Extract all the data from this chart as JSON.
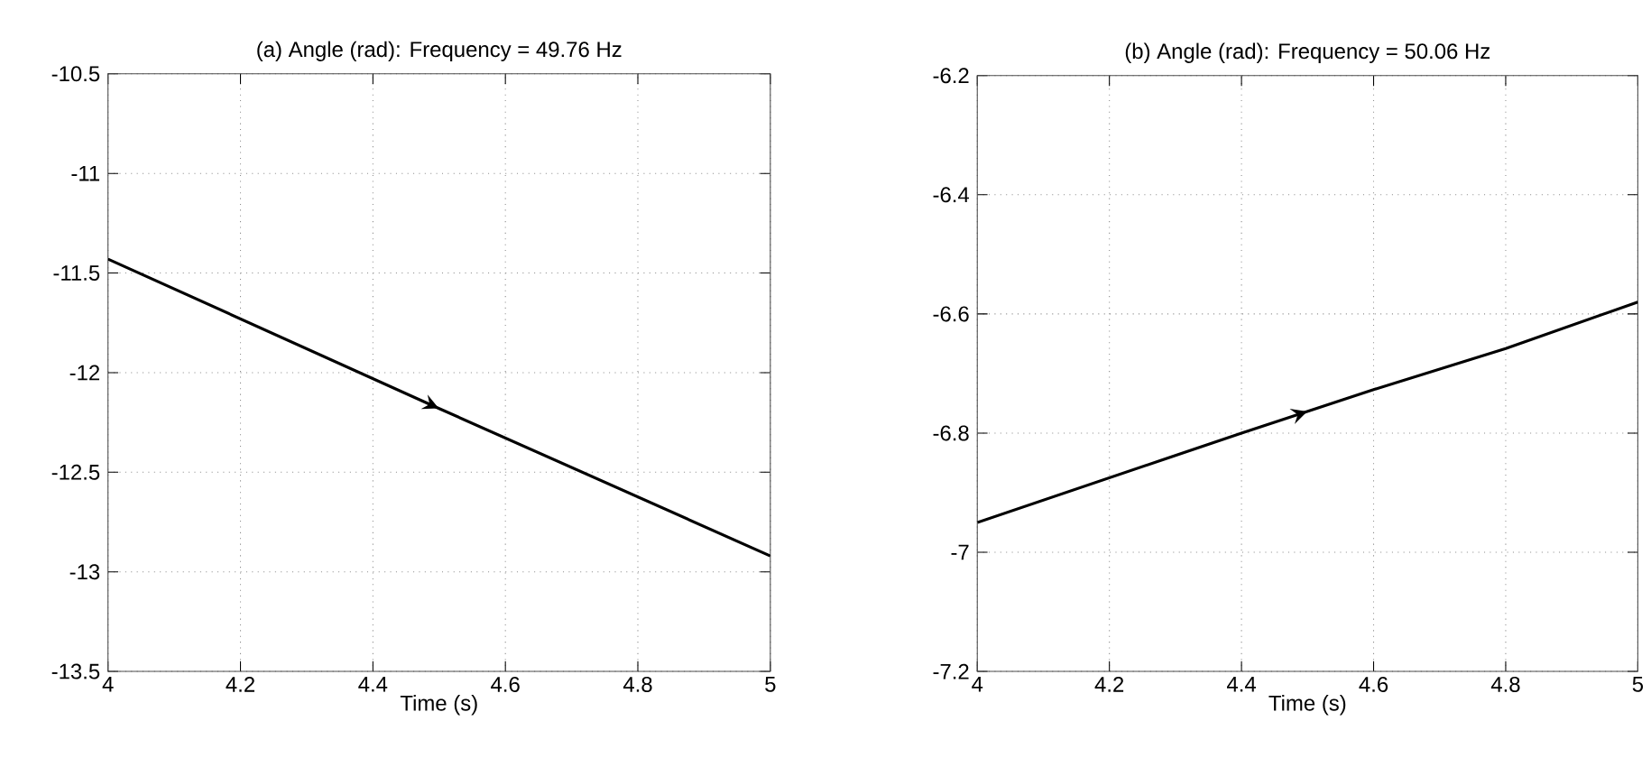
{
  "chart_data": [
    {
      "type": "line",
      "title": "(a) Angle (rad): Frequency = 49.76 Hz",
      "xlabel": "Time (s)",
      "x": [
        4,
        4.5,
        5
      ],
      "values": [
        -11.43,
        -12.18,
        -12.92
      ],
      "color": "#000000",
      "xlim": [
        4,
        5
      ],
      "ylim": [
        -13.5,
        -10.5
      ],
      "xticks": [
        4,
        4.2,
        4.4,
        4.6,
        4.8,
        5
      ],
      "yticks": [
        -13.5,
        -13,
        -12.5,
        -12,
        -11.5,
        -11,
        -10.5
      ],
      "grid": true
    },
    {
      "type": "line",
      "title": "(b) Angle (rad): Frequency = 50.06 Hz",
      "xlabel": "Time (s)",
      "x": [
        4,
        4.2,
        4.4,
        4.6,
        4.8,
        5
      ],
      "values": [
        -6.95,
        -6.875,
        -6.8,
        -6.727,
        -6.658,
        -6.58
      ],
      "color": "#000000",
      "xlim": [
        4,
        5
      ],
      "ylim": [
        -7.2,
        -6.2
      ],
      "xticks": [
        4,
        4.2,
        4.4,
        4.6,
        4.8,
        5
      ],
      "yticks": [
        -7.2,
        -7,
        -6.8,
        -6.6,
        -6.4,
        -6.2
      ],
      "grid": true
    }
  ]
}
